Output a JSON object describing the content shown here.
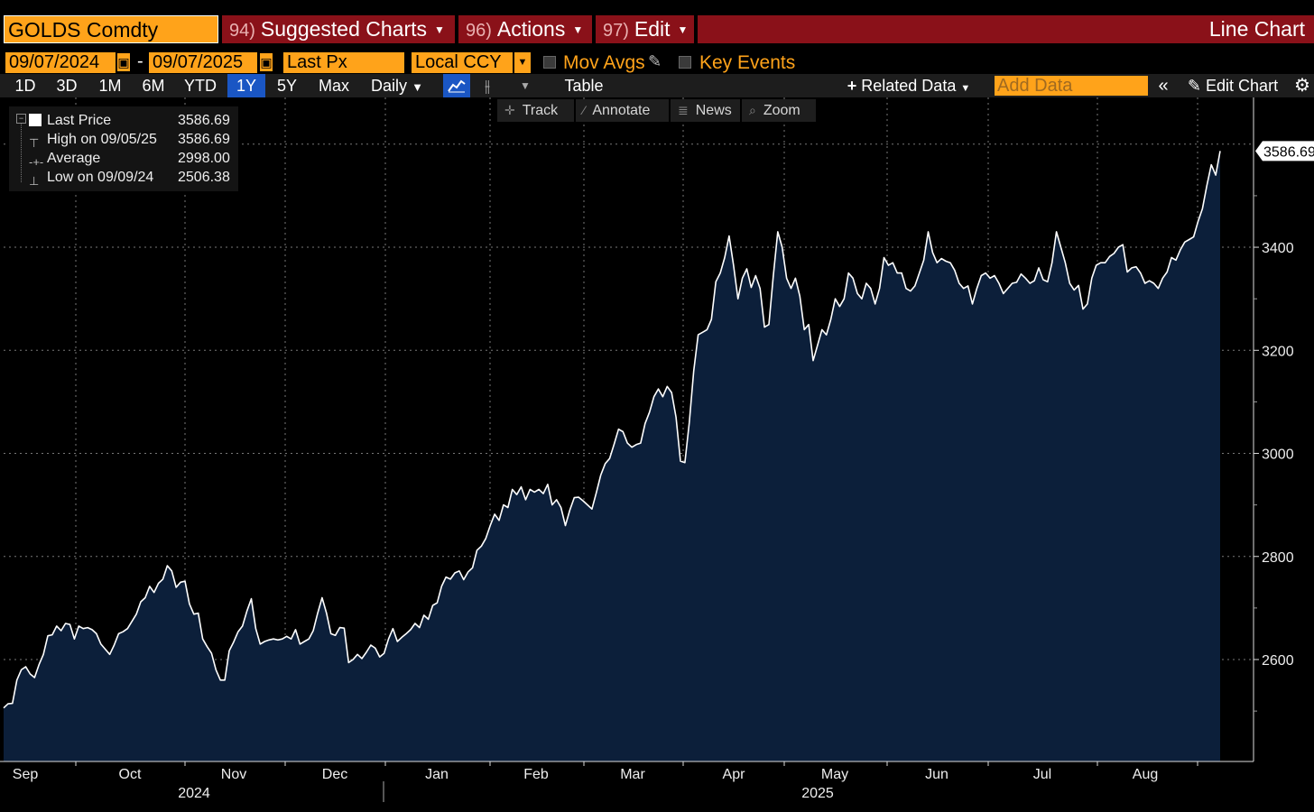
{
  "toolbar": {
    "ticker": "GOLDS Comdty",
    "suggested_num": "94)",
    "suggested_label": "Suggested Charts",
    "actions_num": "96)",
    "actions_label": "Actions",
    "edit_num": "97)",
    "edit_label": "Edit",
    "chart_type_label": "Line Chart"
  },
  "controls": {
    "start_date": "09/07/2024",
    "date_sep": "-",
    "end_date": "09/07/2025",
    "field": "Last Px",
    "currency": "Local CCY",
    "mov_avgs": "Mov Avgs",
    "key_events": "Key Events"
  },
  "ranges": {
    "items": [
      "1D",
      "3D",
      "1M",
      "6M",
      "YTD",
      "1Y",
      "5Y",
      "Max"
    ],
    "active": "1Y",
    "frequency": "Daily",
    "table_label": "Table",
    "related_data": "Related Data",
    "add_data_placeholder": "Add Data",
    "edit_chart": "Edit Chart"
  },
  "tools": {
    "track": "Track",
    "annotate": "Annotate",
    "news": "News",
    "zoom": "Zoom"
  },
  "legend": {
    "last_price_label": "Last Price",
    "last_price_value": "3586.69",
    "high_label": "High on 09/05/25",
    "high_value": "3586.69",
    "average_label": "Average",
    "average_value": "2998.00",
    "low_label": "Low on 09/09/24",
    "low_value": "2506.38"
  },
  "colors": {
    "accent_orange": "#ffa31a",
    "header_red": "#8a1119",
    "area_fill": "#0c1f3a",
    "line": "#ffffff",
    "active_blue": "#1a56c4"
  },
  "chart_data": {
    "type": "area",
    "title": "",
    "xlabel": "",
    "ylabel": "",
    "ylim": [
      2400,
      3600
    ],
    "yticks": [
      2600,
      2800,
      3000,
      3200,
      3400
    ],
    "last_value_label": "3586.69",
    "month_labels": [
      "Sep",
      "Oct",
      "Nov",
      "Dec",
      "Jan",
      "Feb",
      "Mar",
      "Apr",
      "May",
      "Jun",
      "Jul",
      "Aug"
    ],
    "year_labels": [
      "2024",
      "2025"
    ],
    "grid": true,
    "series": [
      {
        "values": [
          2506,
          2514,
          2515,
          2560,
          2580,
          2586,
          2572,
          2565,
          2590,
          2610,
          2646,
          2648,
          2665,
          2656,
          2670,
          2668,
          2640,
          2665,
          2660,
          2662,
          2658,
          2650,
          2630,
          2620,
          2610,
          2628,
          2650,
          2654,
          2660,
          2674,
          2688,
          2712,
          2720,
          2742,
          2730,
          2748,
          2756,
          2782,
          2772,
          2740,
          2750,
          2752,
          2708,
          2688,
          2690,
          2640,
          2625,
          2612,
          2580,
          2560,
          2560,
          2617,
          2634,
          2654,
          2665,
          2694,
          2718,
          2660,
          2630,
          2635,
          2638,
          2640,
          2638,
          2640,
          2645,
          2640,
          2658,
          2630,
          2635,
          2640,
          2656,
          2690,
          2720,
          2690,
          2650,
          2647,
          2662,
          2661,
          2594,
          2600,
          2610,
          2602,
          2614,
          2628,
          2622,
          2605,
          2612,
          2640,
          2660,
          2635,
          2643,
          2650,
          2658,
          2670,
          2662,
          2686,
          2678,
          2705,
          2710,
          2742,
          2760,
          2756,
          2768,
          2772,
          2755,
          2770,
          2778,
          2812,
          2820,
          2835,
          2860,
          2882,
          2870,
          2900,
          2895,
          2930,
          2920,
          2935,
          2910,
          2930,
          2925,
          2930,
          2922,
          2940,
          2900,
          2910,
          2895,
          2860,
          2890,
          2914,
          2915,
          2908,
          2900,
          2892,
          2924,
          2958,
          2980,
          2990,
          3018,
          3047,
          3042,
          3020,
          3012,
          3017,
          3020,
          3058,
          3080,
          3110,
          3125,
          3110,
          3130,
          3118,
          3070,
          2985,
          2982,
          3060,
          3160,
          3230,
          3235,
          3240,
          3260,
          3333,
          3350,
          3380,
          3422,
          3365,
          3300,
          3340,
          3358,
          3322,
          3345,
          3320,
          3245,
          3250,
          3345,
          3430,
          3400,
          3340,
          3320,
          3340,
          3305,
          3240,
          3250,
          3180,
          3210,
          3240,
          3230,
          3260,
          3300,
          3285,
          3300,
          3350,
          3340,
          3310,
          3300,
          3330,
          3320,
          3290,
          3320,
          3380,
          3365,
          3370,
          3350,
          3350,
          3320,
          3315,
          3325,
          3350,
          3375,
          3430,
          3390,
          3370,
          3378,
          3373,
          3370,
          3355,
          3330,
          3320,
          3325,
          3290,
          3320,
          3345,
          3350,
          3340,
          3345,
          3330,
          3310,
          3320,
          3330,
          3332,
          3348,
          3340,
          3330,
          3335,
          3360,
          3337,
          3333,
          3370,
          3430,
          3400,
          3370,
          3330,
          3317,
          3326,
          3280,
          3290,
          3340,
          3365,
          3370,
          3370,
          3382,
          3388,
          3400,
          3405,
          3352,
          3360,
          3362,
          3350,
          3330,
          3335,
          3330,
          3320,
          3340,
          3352,
          3380,
          3375,
          3395,
          3410,
          3415,
          3420,
          3450,
          3475,
          3520,
          3560,
          3540,
          3586.69
        ]
      }
    ]
  }
}
